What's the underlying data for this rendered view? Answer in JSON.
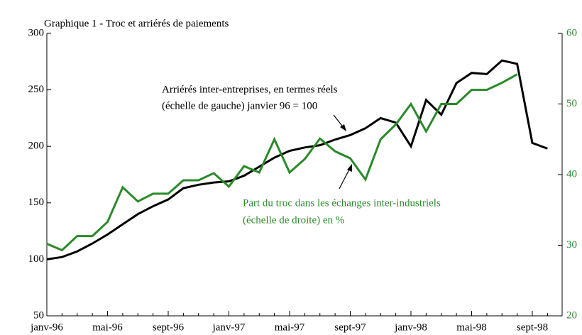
{
  "chart_data": {
    "type": "line",
    "title": "Graphique 1 - Troc et arriérés de paiements",
    "categories": [
      "janv-96",
      null,
      null,
      null,
      "mai-96",
      null,
      null,
      null,
      "sept-96",
      null,
      null,
      null,
      "janv-97",
      null,
      null,
      null,
      "mai-97",
      null,
      null,
      null,
      "sept-97",
      null,
      null,
      null,
      "janv-98",
      null,
      null,
      null,
      "mai-98",
      null,
      null,
      null,
      "sept-98",
      null
    ],
    "series": [
      {
        "name": "Arriérés inter-entreprises, en termes réels",
        "color": "#000000",
        "axis": "y",
        "values": [
          100,
          102,
          107,
          114,
          122,
          131,
          140,
          147,
          153,
          163,
          166,
          168,
          169,
          174,
          182,
          190,
          196,
          199,
          201,
          206,
          210,
          216,
          225,
          221,
          200,
          241,
          228,
          256,
          265,
          264,
          276,
          273,
          203,
          198
        ]
      },
      {
        "name": "Part du troc dans les échanges inter-industriels",
        "color": "#2a8a2a",
        "axis": "y2",
        "values": [
          30.2,
          29.3,
          31.3,
          31.3,
          33.3,
          38.2,
          36.2,
          37.3,
          37.3,
          39.2,
          39.2,
          40.2,
          38.3,
          41.2,
          40.3,
          45,
          40.3,
          42.2,
          45.1,
          43.3,
          42.3,
          39.3,
          45,
          47.1,
          50,
          46.1,
          50,
          50,
          52,
          52,
          53,
          54.2,
          null,
          null
        ]
      }
    ],
    "annotations": [
      {
        "lines": [
          "Arriérés inter-entreprises, en termes réels",
          "(échelle de gauche) janvier 96 = 100"
        ]
      },
      {
        "lines": [
          "Part du troc dans les échanges inter-industriels",
          "(échelle de droite) en %"
        ]
      }
    ],
    "ylim": [
      50,
      300
    ],
    "yticks": [
      50,
      100,
      150,
      200,
      250,
      300
    ],
    "y2lim": [
      20,
      60
    ],
    "y2ticks": [
      20,
      30,
      40,
      50,
      60
    ]
  }
}
